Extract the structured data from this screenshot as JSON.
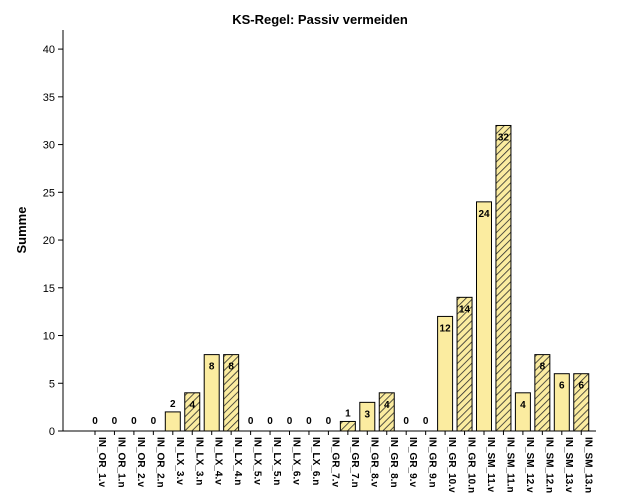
{
  "chart_data": {
    "type": "bar",
    "title": "KS-Regel: Passiv vermeiden",
    "xlabel": "",
    "ylabel": "Summe",
    "ylim": [
      0,
      42
    ],
    "yticks": [
      0,
      5,
      10,
      15,
      20,
      25,
      30,
      35,
      40
    ],
    "grid": false,
    "categories": [
      "IN_OR_1.v",
      "IN_OR_1.n",
      "IN_OR_2.v",
      "IN_OR_2.n",
      "IN_LX_3.v",
      "IN_LX_3.n",
      "IN_LX_4.v",
      "IN_LX_4.n",
      "IN_LX_5.v",
      "IN_LX_5.n",
      "IN_LX_6.v",
      "IN_LX_6.n",
      "IN_GR_7.v",
      "IN_GR_7.n",
      "IN_GR_8.v",
      "IN_GR_8.n",
      "IN_GR_9.v",
      "IN_GR_9.n",
      "IN_GR_10.v",
      "IN_GR_10.n",
      "IN_SM_11.v",
      "IN_SM_11.n",
      "IN_SM_12.v",
      "IN_SM_12.n",
      "IN_SM_13.v",
      "IN_SM_13.n"
    ],
    "values": [
      0,
      0,
      0,
      0,
      2,
      4,
      8,
      8,
      0,
      0,
      0,
      0,
      0,
      1,
      3,
      4,
      0,
      0,
      12,
      14,
      24,
      32,
      4,
      8,
      6,
      6
    ],
    "pattern": [
      "solid",
      "hatched",
      "solid",
      "hatched",
      "solid",
      "hatched",
      "solid",
      "hatched",
      "solid",
      "hatched",
      "solid",
      "hatched",
      "solid",
      "hatched",
      "solid",
      "hatched",
      "solid",
      "hatched",
      "solid",
      "hatched",
      "solid",
      "hatched",
      "solid",
      "hatched",
      "solid",
      "hatched"
    ],
    "colors": {
      "fill": "#fbeca0",
      "hatch": "#2a2a2a",
      "stroke": "#000000"
    }
  }
}
